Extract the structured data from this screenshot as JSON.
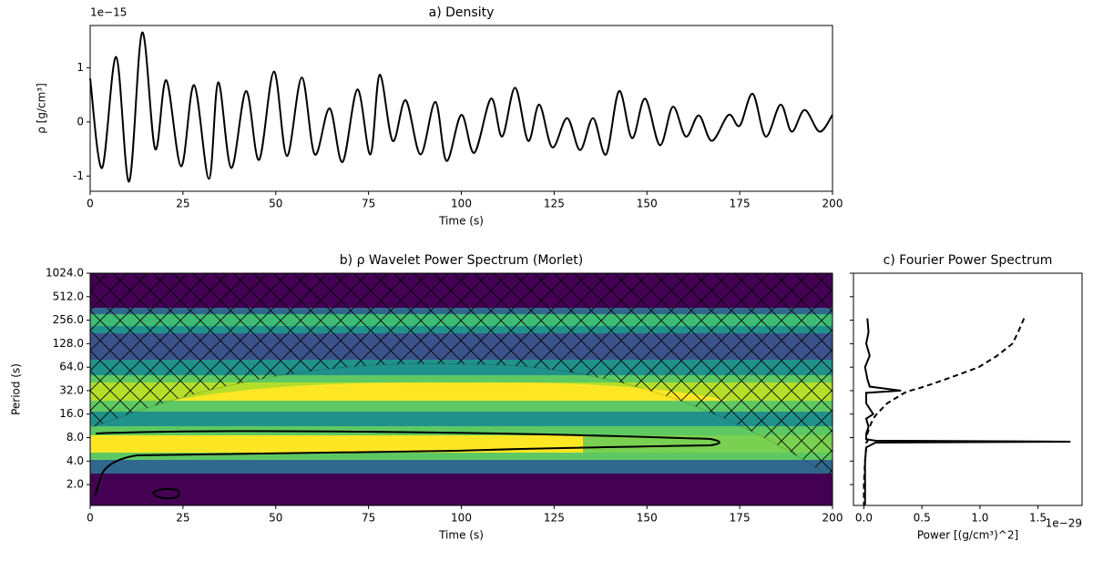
{
  "chart_data": [
    {
      "type": "line",
      "title": "a) Density",
      "offset_text": "1e−15",
      "xlabel": "Time (s)",
      "ylabel": "ρ [g/cm³]",
      "color": "#000000",
      "x": [
        0,
        3.2,
        7,
        10.5,
        14,
        17.5,
        20.5,
        24.5,
        28,
        32,
        34.5,
        38,
        42,
        45.5,
        49.5,
        53,
        57,
        60.5,
        64.5,
        68,
        72,
        75.5,
        78,
        81.5,
        85,
        89,
        93,
        96,
        100,
        103.5,
        108,
        111,
        114.5,
        118,
        121,
        124.5,
        128.5,
        132,
        135.5,
        139,
        142.5,
        146,
        149.5,
        153.5,
        157,
        160.5,
        164,
        167.5,
        172,
        175,
        178.5,
        182,
        186,
        189,
        192.5,
        196.5,
        200
      ],
      "values": [
        0.8,
        -0.85,
        1.2,
        -1.1,
        1.65,
        -0.5,
        0.77,
        -0.82,
        0.68,
        -1.05,
        0.73,
        -0.85,
        0.57,
        -0.7,
        0.93,
        -0.63,
        0.82,
        -0.6,
        0.25,
        -0.74,
        0.6,
        -0.6,
        0.87,
        -0.35,
        0.4,
        -0.6,
        0.37,
        -0.72,
        0.13,
        -0.57,
        0.43,
        -0.27,
        0.63,
        -0.35,
        0.32,
        -0.47,
        0.07,
        -0.52,
        0.07,
        -0.6,
        0.57,
        -0.3,
        0.43,
        -0.43,
        0.28,
        -0.27,
        0.12,
        -0.35,
        0.13,
        -0.07,
        0.52,
        -0.27,
        0.32,
        -0.18,
        0.22,
        -0.18,
        0.13
      ],
      "xlim": [
        0,
        200
      ],
      "xticks": [
        0,
        25,
        50,
        75,
        100,
        125,
        150,
        175,
        200
      ],
      "ylim": [
        -1.28,
        1.78
      ],
      "yticks": [
        -1,
        0,
        1
      ]
    },
    {
      "type": "heatmap",
      "title": "b) ρ Wavelet Power Spectrum (Morlet)",
      "xlabel": "Time (s)",
      "ylabel": "Period (s)",
      "xlim": [
        0,
        200
      ],
      "xticks": [
        0,
        25,
        50,
        75,
        100,
        125,
        150,
        175,
        200
      ],
      "ylog": true,
      "ylim": [
        1.08,
        1024
      ],
      "yticks": [
        {
          "value": 2,
          "label": "2.0"
        },
        {
          "value": 4,
          "label": "4.0"
        },
        {
          "value": 8,
          "label": "8.0"
        },
        {
          "value": 16,
          "label": "16.0"
        },
        {
          "value": 32,
          "label": "32.0"
        },
        {
          "value": 64,
          "label": "64.0"
        },
        {
          "value": 128,
          "label": "128.0"
        },
        {
          "value": 256,
          "label": "256.0"
        },
        {
          "value": 512,
          "label": "512.0"
        },
        {
          "value": 1024,
          "label": "1024.0"
        }
      ]
    },
    {
      "type": "line",
      "orientation": "horizontal",
      "title": "c) Fourier Power Spectrum",
      "xlabel": "Power [(g/cm³)^2]",
      "offset_text": "1e−29",
      "periods": [
        270,
        181,
        128,
        90,
        64,
        45,
        36,
        32,
        30,
        22,
        16,
        14,
        11,
        9,
        7.6,
        7.3,
        7.1,
        6.9,
        6,
        4,
        2,
        1.1
      ],
      "series": [
        {
          "color": "#000000",
          "dash": false,
          "values": [
            0.03,
            0.04,
            0.02,
            0.05,
            0.01,
            0.03,
            0.05,
            0.32,
            0.02,
            0.02,
            0.08,
            0.02,
            0.04,
            0.02,
            0.02,
            0.1,
            1.78,
            0.1,
            0.02,
            0.01,
            0.01,
            0.01
          ]
        },
        {
          "color": "#000000",
          "dash": true,
          "values": [
            1.38,
            1.33,
            1.28,
            1.15,
            0.99,
            0.71,
            0.52,
            0.4,
            0.35,
            0.2,
            0.11,
            0.08,
            0.05,
            0.03,
            0.03,
            0.03,
            0.03,
            0.02,
            0.02,
            0.01,
            0.0,
            0.0
          ]
        }
      ],
      "xlim": [
        -0.09,
        1.88
      ],
      "xticks": [
        {
          "value": 0,
          "label": "0.0"
        },
        {
          "value": 0.5,
          "label": "0.5"
        },
        {
          "value": 1,
          "label": "1.0"
        },
        {
          "value": 1.5,
          "label": "1.5"
        }
      ],
      "ylog": true,
      "ylim": [
        1.08,
        1024
      ]
    }
  ]
}
